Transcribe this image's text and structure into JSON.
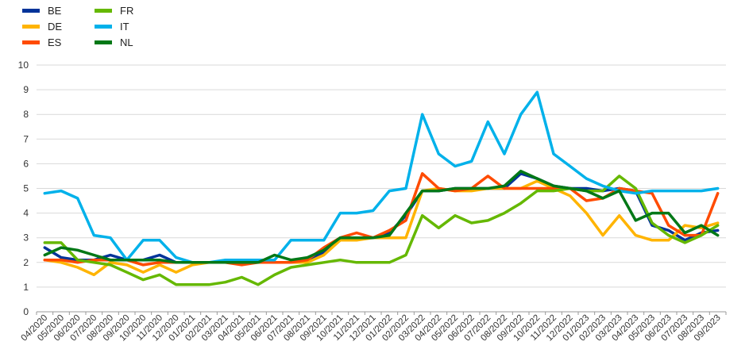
{
  "chart_data": {
    "type": "line",
    "title": "",
    "xlabel": "",
    "ylabel": "",
    "ylim": [
      0,
      10
    ],
    "yticks": [
      "0",
      "1",
      "2",
      "3",
      "4",
      "5",
      "6",
      "7",
      "8",
      "9",
      "10"
    ],
    "grid": "horizontal",
    "legend_placement": "top-left",
    "x": [
      "04/2020",
      "05/2020",
      "06/2020",
      "07/2020",
      "08/2020",
      "09/2020",
      "10/2020",
      "11/2020",
      "12/2020",
      "01/2021",
      "02/2021",
      "03/2021",
      "04/2021",
      "05/2021",
      "06/2021",
      "07/2021",
      "08/2021",
      "09/2021",
      "10/2021",
      "11/2021",
      "12/2021",
      "01/2022",
      "02/2022",
      "03/2022",
      "04/2022",
      "05/2022",
      "06/2022",
      "07/2022",
      "08/2022",
      "09/2022",
      "10/2022",
      "11/2022",
      "12/2022",
      "01/2023",
      "02/2023",
      "03/2023",
      "04/2023",
      "05/2023",
      "06/2023",
      "07/2023",
      "08/2023",
      "09/2023"
    ],
    "x_tick_labels": [
      "04/2020",
      "05/2020",
      "06/2020",
      "07/2020",
      "08/2020",
      "09/2020",
      "10/2020",
      "11/2020",
      "12/2020",
      "01/2021",
      "02/2021",
      "03/2021",
      "04/2021",
      "05/2021",
      "06/2021",
      "07/2021",
      "08/2021",
      "09/2021",
      "10/2021",
      "11/2021",
      "12/2021",
      "01/2022",
      "02/2022",
      "03/2022",
      "04/2022",
      "05/2022",
      "06/2022",
      "07/2022",
      "08/2022",
      "09/2022",
      "10/2022",
      "11/2022",
      "12/2022",
      "01/2023",
      "02/2023",
      "03/2023",
      "04/2023",
      "05/2023",
      "06/2023",
      "07/2023",
      "08/2023",
      "09/2023"
    ],
    "series": [
      {
        "name": "BE",
        "color": "#003399",
        "values": [
          2.6,
          2.2,
          2.1,
          2.1,
          2.3,
          2.1,
          2.1,
          2.3,
          2.0,
          2.0,
          2.0,
          2.0,
          2.0,
          2.0,
          2.0,
          2.0,
          2.1,
          2.4,
          2.9,
          3.0,
          3.0,
          3.2,
          3.9,
          4.9,
          4.9,
          5.0,
          5.0,
          5.0,
          5.0,
          5.6,
          5.4,
          5.1,
          5.0,
          5.0,
          4.9,
          5.0,
          4.9,
          3.5,
          3.3,
          2.9,
          3.2,
          3.3
        ]
      },
      {
        "name": "DE",
        "color": "#FFB400",
        "values": [
          2.1,
          2.0,
          1.8,
          1.5,
          2.0,
          1.9,
          1.6,
          1.9,
          1.6,
          1.9,
          2.0,
          2.0,
          2.0,
          2.0,
          2.0,
          2.0,
          2.0,
          2.3,
          2.9,
          2.9,
          3.0,
          3.0,
          3.0,
          4.9,
          5.0,
          4.9,
          4.9,
          5.0,
          5.0,
          5.0,
          5.3,
          5.0,
          4.7,
          4.0,
          3.1,
          3.9,
          3.1,
          2.9,
          2.9,
          3.5,
          3.4,
          3.6
        ]
      },
      {
        "name": "ES",
        "color": "#FF4B00",
        "values": [
          2.1,
          2.1,
          2.0,
          2.1,
          2.1,
          2.1,
          1.9,
          2.0,
          2.0,
          2.0,
          2.0,
          2.0,
          1.9,
          2.0,
          2.0,
          2.0,
          2.1,
          2.6,
          3.0,
          3.2,
          3.0,
          3.3,
          3.7,
          5.6,
          5.0,
          4.9,
          5.0,
          5.5,
          5.0,
          5.0,
          5.0,
          5.0,
          5.0,
          4.5,
          4.6,
          5.0,
          4.9,
          4.8,
          3.5,
          3.1,
          3.1,
          4.8
        ]
      },
      {
        "name": "FR",
        "color": "#65B800",
        "values": [
          2.8,
          2.8,
          2.1,
          2.0,
          1.9,
          1.6,
          1.3,
          1.5,
          1.1,
          1.1,
          1.1,
          1.2,
          1.4,
          1.1,
          1.5,
          1.8,
          1.9,
          2.0,
          2.1,
          2.0,
          2.0,
          2.0,
          2.3,
          3.9,
          3.4,
          3.9,
          3.6,
          3.7,
          4.0,
          4.4,
          4.9,
          4.9,
          5.0,
          4.9,
          4.9,
          5.5,
          5.0,
          3.6,
          3.1,
          2.8,
          3.1,
          3.5
        ]
      },
      {
        "name": "IT",
        "color": "#00B1EA",
        "values": [
          4.8,
          4.9,
          4.6,
          3.1,
          3.0,
          2.1,
          2.9,
          2.9,
          2.2,
          2.0,
          2.0,
          2.1,
          2.1,
          2.1,
          2.1,
          2.9,
          2.9,
          2.9,
          4.0,
          4.0,
          4.1,
          4.9,
          5.0,
          8.0,
          6.4,
          5.9,
          6.1,
          7.7,
          6.4,
          8.0,
          8.9,
          6.4,
          5.9,
          5.4,
          5.1,
          4.9,
          4.8,
          4.9,
          4.9,
          4.9,
          4.9,
          5.0
        ]
      },
      {
        "name": "NL",
        "color": "#007816",
        "values": [
          2.3,
          2.6,
          2.5,
          2.3,
          2.1,
          2.1,
          2.1,
          2.1,
          2.0,
          2.0,
          2.0,
          2.0,
          2.0,
          2.0,
          2.3,
          2.1,
          2.2,
          2.5,
          3.0,
          3.0,
          3.0,
          3.1,
          4.0,
          4.9,
          4.9,
          5.0,
          5.0,
          5.0,
          5.1,
          5.7,
          5.4,
          5.1,
          5.0,
          4.9,
          4.6,
          4.9,
          3.7,
          4.0,
          4.0,
          3.2,
          3.5,
          3.1
        ]
      }
    ]
  }
}
